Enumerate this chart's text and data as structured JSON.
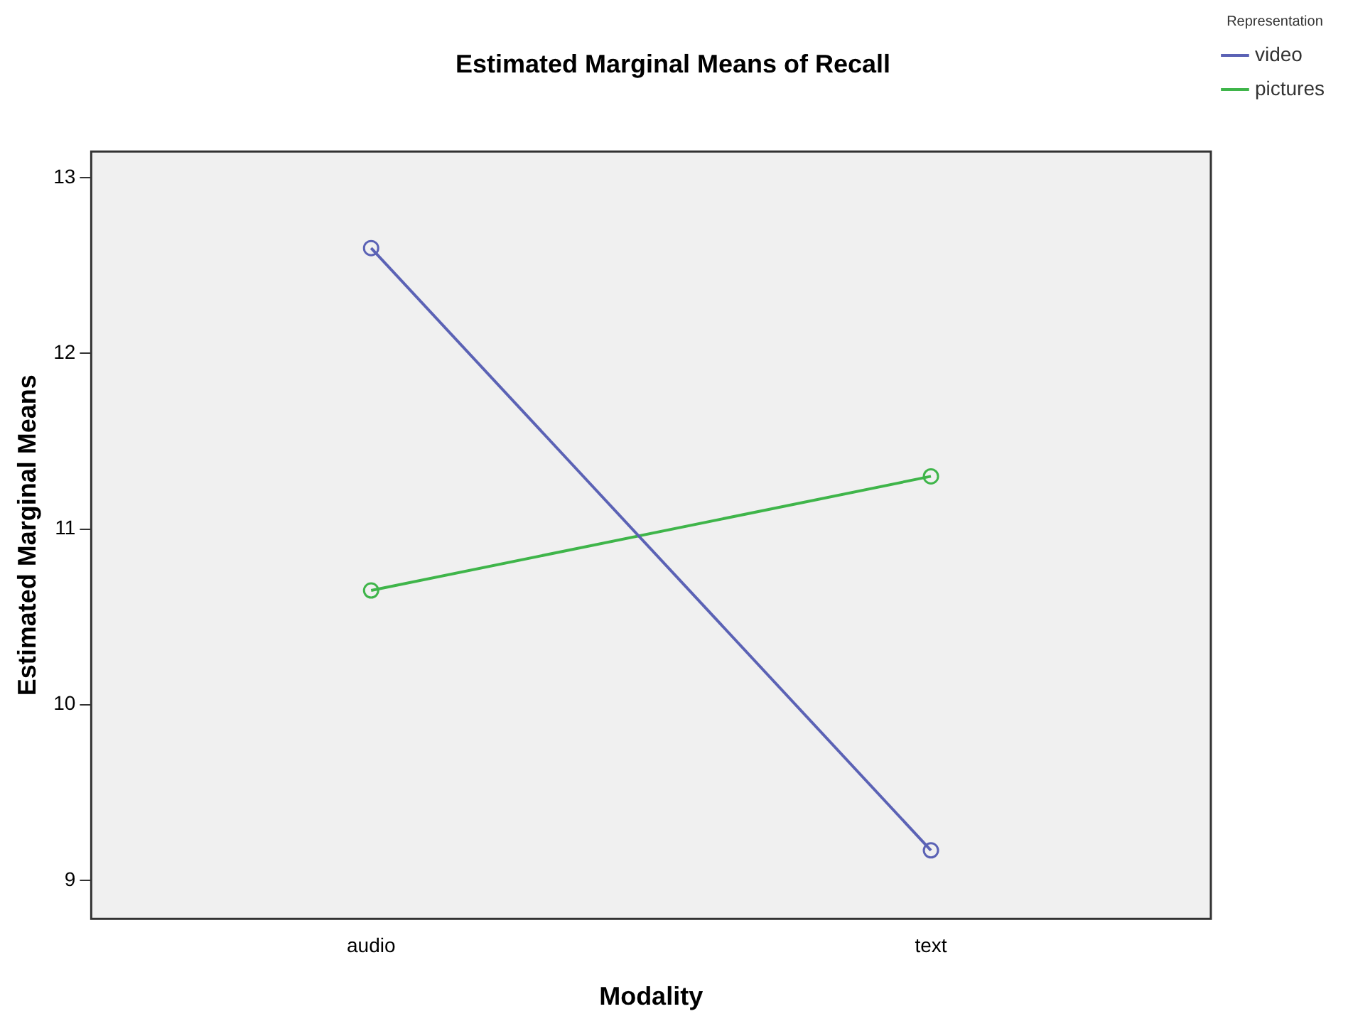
{
  "chart_data": {
    "type": "line",
    "title": "Estimated Marginal Means of Recall",
    "xlabel": "Modality",
    "ylabel": "Estimated Marginal Means",
    "legend_title": "Representation",
    "categories": [
      "audio",
      "text"
    ],
    "series": [
      {
        "name": "video",
        "color": "#5b62b5",
        "values": [
          12.6,
          9.17
        ]
      },
      {
        "name": "pictures",
        "color": "#3fb54a",
        "values": [
          10.65,
          11.3
        ]
      }
    ],
    "ylim": [
      8.78,
      13.15
    ],
    "yticks": [
      9,
      10,
      11,
      12,
      13
    ],
    "grid": false,
    "legend": "top right",
    "marker": "circle",
    "line_style": "solid"
  }
}
